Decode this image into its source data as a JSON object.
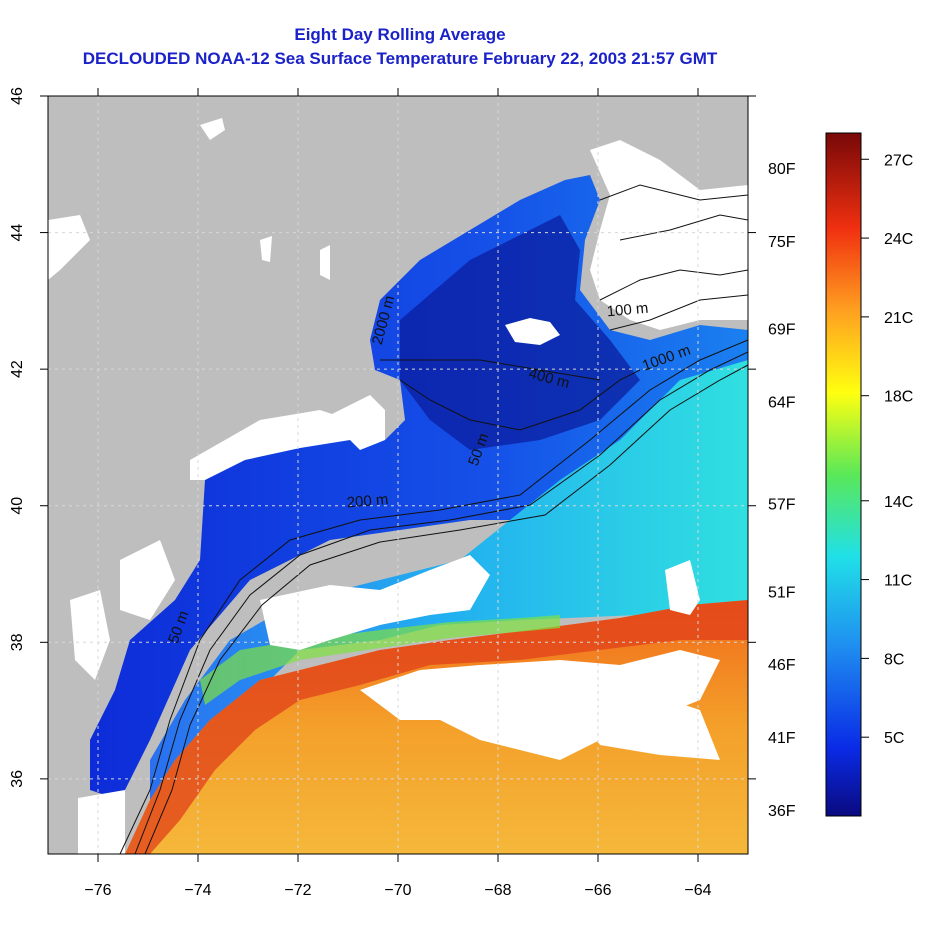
{
  "map": {
    "title_line1": "Eight Day Rolling Average",
    "title_line2": "DECLOUDED NOAA-12 Sea Surface Temperature February 22, 2003 21:57 GMT",
    "lon_ticks": [
      "-76",
      "-74",
      "-72",
      "-70",
      "-68",
      "-66",
      "-64"
    ],
    "lat_ticks": [
      "36",
      "38",
      "40",
      "42",
      "44",
      "46"
    ],
    "contour_labels": [
      "50 m",
      "200 m",
      "400 m",
      "1000 m",
      "100 m",
      "50 m",
      "2000 m"
    ],
    "grid": true
  },
  "colorbar": {
    "celsius": [
      "27C",
      "24C",
      "21C",
      "18C",
      "14C",
      "11C",
      "8C",
      "5C"
    ],
    "fahrenheit": [
      "80F",
      "75F",
      "69F",
      "64F",
      "57F",
      "51F",
      "46F",
      "41F",
      "36F"
    ]
  },
  "colors": {
    "title": "#1b22c8",
    "land": "#bebebe",
    "cloud": "#ffffff",
    "cold": "#0a1fb0",
    "warm": "#f08a1e"
  }
}
